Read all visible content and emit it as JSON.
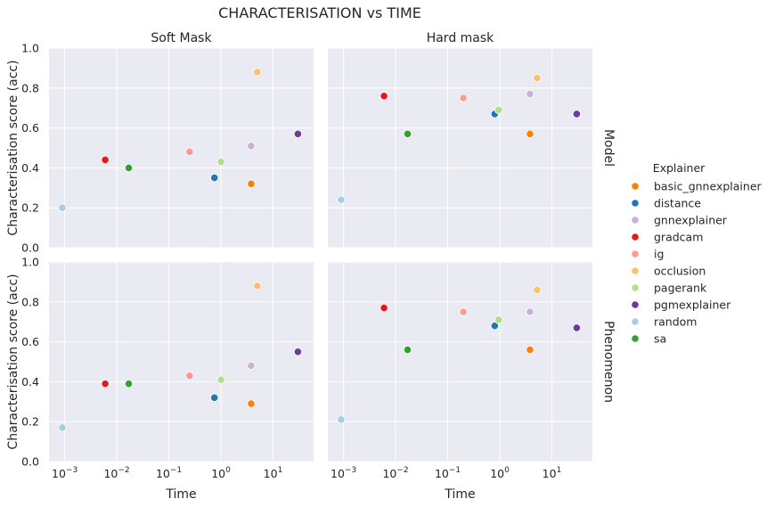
{
  "figure": {
    "title": "CHARACTERISATION vs TIME",
    "legend_title": "Explainer",
    "legend_position": "right",
    "background": "#eaeaf2",
    "grid_color": "#ffffff"
  },
  "chart_data": {
    "type": "scatter",
    "x_scale": "log",
    "xlabel": "Time",
    "ylabel": "Characterisation score (acc)",
    "ylim": [
      0,
      1.0
    ],
    "xlim": [
      0.0005,
      60
    ],
    "grid": true,
    "x_ticks": [
      {
        "value": 0.001,
        "base": "10",
        "exp": "−3"
      },
      {
        "value": 0.01,
        "base": "10",
        "exp": "−2"
      },
      {
        "value": 0.1,
        "base": "10",
        "exp": "−1"
      },
      {
        "value": 1,
        "base": "10",
        "exp": "0"
      },
      {
        "value": 10,
        "base": "10",
        "exp": "1"
      }
    ],
    "y_ticks": [
      {
        "value": 0.0,
        "label": "0.0"
      },
      {
        "value": 0.2,
        "label": "0.2"
      },
      {
        "value": 0.4,
        "label": "0.4"
      },
      {
        "value": 0.6,
        "label": "0.6"
      },
      {
        "value": 0.8,
        "label": "0.8"
      },
      {
        "value": 1.0,
        "label": "1.0"
      }
    ],
    "explainers": [
      {
        "name": "basic_gnnexplainer",
        "color": "#ff7f00"
      },
      {
        "name": "distance",
        "color": "#1f78b4"
      },
      {
        "name": "gnnexplainer",
        "color": "#cab2d6"
      },
      {
        "name": "gradcam",
        "color": "#e31a1c"
      },
      {
        "name": "ig",
        "color": "#fb9a99"
      },
      {
        "name": "occlusion",
        "color": "#fdbf6f"
      },
      {
        "name": "pagerank",
        "color": "#b2df8a"
      },
      {
        "name": "pgmexplainer",
        "color": "#6a3d9a"
      },
      {
        "name": "random",
        "color": "#a6cee3"
      },
      {
        "name": "sa",
        "color": "#33a02c"
      }
    ],
    "col_labels": [
      "Soft Mask",
      "Hard mask"
    ],
    "row_labels": [
      "Model",
      "Phenomenon"
    ],
    "panels": [
      {
        "row": "Model",
        "col": "Soft Mask",
        "points": [
          {
            "explainer": "basic_gnnexplainer",
            "x": 3.8,
            "y": 0.32
          },
          {
            "explainer": "distance",
            "x": 0.75,
            "y": 0.35
          },
          {
            "explainer": "gnnexplainer",
            "x": 3.8,
            "y": 0.51
          },
          {
            "explainer": "gradcam",
            "x": 0.006,
            "y": 0.44
          },
          {
            "explainer": "ig",
            "x": 0.25,
            "y": 0.48
          },
          {
            "explainer": "occlusion",
            "x": 5.0,
            "y": 0.88
          },
          {
            "explainer": "pagerank",
            "x": 1.0,
            "y": 0.43
          },
          {
            "explainer": "pgmexplainer",
            "x": 30,
            "y": 0.57
          },
          {
            "explainer": "random",
            "x": 0.0009,
            "y": 0.2
          },
          {
            "explainer": "sa",
            "x": 0.017,
            "y": 0.4
          }
        ]
      },
      {
        "row": "Model",
        "col": "Hard mask",
        "points": [
          {
            "explainer": "basic_gnnexplainer",
            "x": 3.8,
            "y": 0.57
          },
          {
            "explainer": "distance",
            "x": 0.8,
            "y": 0.67
          },
          {
            "explainer": "gnnexplainer",
            "x": 3.8,
            "y": 0.77
          },
          {
            "explainer": "gradcam",
            "x": 0.006,
            "y": 0.76
          },
          {
            "explainer": "ig",
            "x": 0.2,
            "y": 0.75
          },
          {
            "explainer": "occlusion",
            "x": 5.2,
            "y": 0.85
          },
          {
            "explainer": "pagerank",
            "x": 0.95,
            "y": 0.69
          },
          {
            "explainer": "pgmexplainer",
            "x": 30,
            "y": 0.67
          },
          {
            "explainer": "random",
            "x": 0.0009,
            "y": 0.24
          },
          {
            "explainer": "sa",
            "x": 0.017,
            "y": 0.57
          }
        ]
      },
      {
        "row": "Phenomenon",
        "col": "Soft Mask",
        "points": [
          {
            "explainer": "basic_gnnexplainer",
            "x": 3.8,
            "y": 0.29
          },
          {
            "explainer": "distance",
            "x": 0.75,
            "y": 0.32
          },
          {
            "explainer": "gnnexplainer",
            "x": 3.8,
            "y": 0.48
          },
          {
            "explainer": "gradcam",
            "x": 0.006,
            "y": 0.39
          },
          {
            "explainer": "ig",
            "x": 0.25,
            "y": 0.43
          },
          {
            "explainer": "occlusion",
            "x": 5.0,
            "y": 0.88
          },
          {
            "explainer": "pagerank",
            "x": 1.0,
            "y": 0.41
          },
          {
            "explainer": "pgmexplainer",
            "x": 30,
            "y": 0.55
          },
          {
            "explainer": "random",
            "x": 0.0009,
            "y": 0.17
          },
          {
            "explainer": "sa",
            "x": 0.017,
            "y": 0.39
          }
        ]
      },
      {
        "row": "Phenomenon",
        "col": "Hard mask",
        "points": [
          {
            "explainer": "basic_gnnexplainer",
            "x": 3.8,
            "y": 0.56
          },
          {
            "explainer": "distance",
            "x": 0.8,
            "y": 0.68
          },
          {
            "explainer": "gnnexplainer",
            "x": 3.8,
            "y": 0.75
          },
          {
            "explainer": "gradcam",
            "x": 0.006,
            "y": 0.77
          },
          {
            "explainer": "ig",
            "x": 0.2,
            "y": 0.75
          },
          {
            "explainer": "occlusion",
            "x": 5.2,
            "y": 0.86
          },
          {
            "explainer": "pagerank",
            "x": 0.95,
            "y": 0.71
          },
          {
            "explainer": "pgmexplainer",
            "x": 30,
            "y": 0.67
          },
          {
            "explainer": "random",
            "x": 0.0009,
            "y": 0.21
          },
          {
            "explainer": "sa",
            "x": 0.017,
            "y": 0.56
          }
        ]
      }
    ]
  }
}
